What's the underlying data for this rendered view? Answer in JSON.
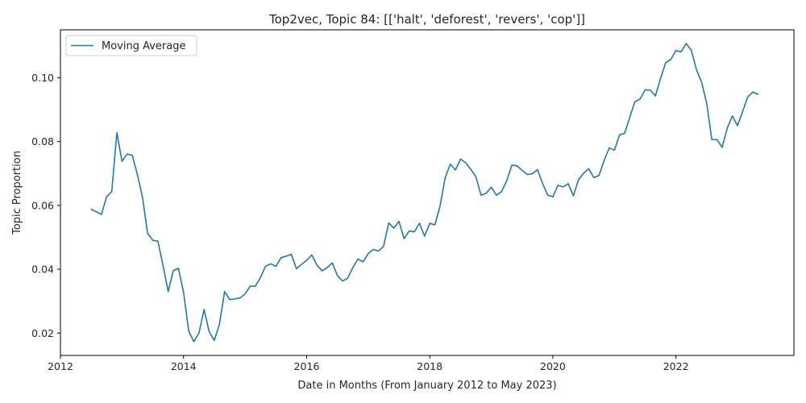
{
  "chart_data": {
    "type": "line",
    "title": "Top2vec, Topic 84: [['halt', 'deforest', 'revers', 'cop']]",
    "xlabel": "Date in Months (From January 2012 to May 2023)",
    "ylabel": "Topic Proportion",
    "xlim": [
      "2012-01",
      "2023-12"
    ],
    "ylim": [
      0.013,
      0.115
    ],
    "xticks": [
      "2012",
      "2014",
      "2016",
      "2018",
      "2020",
      "2022"
    ],
    "yticks": [
      "0.02",
      "0.04",
      "0.06",
      "0.08",
      "0.10"
    ],
    "grid": false,
    "legend_position": "top-left",
    "series": [
      {
        "name": "Moving Average",
        "color": "#1f77b4",
        "x": [
          "2012-07",
          "2012-09",
          "2012-10",
          "2012-11",
          "2012-12",
          "2013-01",
          "2013-02",
          "2013-03",
          "2013-04",
          "2013-05",
          "2013-06",
          "2013-07",
          "2013-08",
          "2013-09",
          "2013-10",
          "2013-11",
          "2013-12",
          "2014-01",
          "2014-02",
          "2014-03",
          "2014-04",
          "2014-05",
          "2014-06",
          "2014-07",
          "2014-08",
          "2014-09",
          "2014-10",
          "2014-11",
          "2014-12",
          "2015-01",
          "2015-02",
          "2015-03",
          "2015-04",
          "2015-05",
          "2015-06",
          "2015-07",
          "2015-08",
          "2015-09",
          "2015-10",
          "2015-11",
          "2015-12",
          "2016-01",
          "2016-02",
          "2016-03",
          "2016-04",
          "2016-05",
          "2016-06",
          "2016-07",
          "2016-08",
          "2016-09",
          "2016-10",
          "2016-11",
          "2016-12",
          "2017-01",
          "2017-02",
          "2017-03",
          "2017-04",
          "2017-05",
          "2017-06",
          "2017-07",
          "2017-08",
          "2017-09",
          "2017-10",
          "2017-11",
          "2017-12",
          "2018-01",
          "2018-02",
          "2018-03",
          "2018-04",
          "2018-05",
          "2018-06",
          "2018-07",
          "2018-08",
          "2018-09",
          "2018-10",
          "2018-11",
          "2018-12",
          "2019-01",
          "2019-02",
          "2019-03",
          "2019-04",
          "2019-05",
          "2019-06",
          "2019-07",
          "2019-08",
          "2019-09",
          "2019-10",
          "2019-11",
          "2019-12",
          "2020-01",
          "2020-02",
          "2020-03",
          "2020-04",
          "2020-05",
          "2020-06",
          "2020-07",
          "2020-08",
          "2020-09",
          "2020-10",
          "2020-11",
          "2020-12",
          "2021-01",
          "2021-02",
          "2021-03",
          "2021-04",
          "2021-05",
          "2021-06",
          "2021-07",
          "2021-08",
          "2021-09",
          "2021-10",
          "2021-11",
          "2021-12",
          "2022-01",
          "2022-02",
          "2022-03",
          "2022-04",
          "2022-05",
          "2022-06",
          "2022-07",
          "2022-08",
          "2022-09",
          "2022-10",
          "2022-11",
          "2022-12",
          "2023-01",
          "2023-02",
          "2023-03",
          "2023-04",
          "2023-05"
        ],
        "values": [
          0.0588,
          0.0572,
          0.0627,
          0.0643,
          0.0828,
          0.0738,
          0.0761,
          0.0757,
          0.0697,
          0.0625,
          0.0512,
          0.0491,
          0.0488,
          0.0412,
          0.033,
          0.0396,
          0.0403,
          0.0328,
          0.0207,
          0.0173,
          0.02,
          0.0274,
          0.0204,
          0.0177,
          0.0228,
          0.033,
          0.0305,
          0.0307,
          0.031,
          0.0323,
          0.0347,
          0.0347,
          0.0374,
          0.041,
          0.0417,
          0.0409,
          0.0436,
          0.0441,
          0.0447,
          0.0402,
          0.0415,
          0.0428,
          0.0445,
          0.0413,
          0.0395,
          0.0405,
          0.042,
          0.038,
          0.0363,
          0.0372,
          0.0405,
          0.0432,
          0.0423,
          0.0449,
          0.0462,
          0.0457,
          0.0472,
          0.0545,
          0.0529,
          0.055,
          0.0496,
          0.052,
          0.0517,
          0.0544,
          0.0504,
          0.0544,
          0.0539,
          0.0597,
          0.0686,
          0.0729,
          0.0711,
          0.0745,
          0.0734,
          0.0713,
          0.069,
          0.0632,
          0.0638,
          0.0657,
          0.0632,
          0.0643,
          0.0677,
          0.0726,
          0.0724,
          0.071,
          0.0697,
          0.0699,
          0.0712,
          0.0669,
          0.0632,
          0.0627,
          0.0663,
          0.0658,
          0.0668,
          0.063,
          0.068,
          0.0701,
          0.0715,
          0.0687,
          0.0694,
          0.0741,
          0.078,
          0.0773,
          0.0821,
          0.0826,
          0.0876,
          0.0925,
          0.0933,
          0.0962,
          0.0961,
          0.0943,
          0.0998,
          0.1047,
          0.1057,
          0.1085,
          0.1081,
          0.1107,
          0.1086,
          0.1025,
          0.0986,
          0.092,
          0.0806,
          0.0806,
          0.0782,
          0.0842,
          0.088,
          0.085,
          0.0894,
          0.094,
          0.0955,
          0.0948
        ]
      }
    ]
  }
}
